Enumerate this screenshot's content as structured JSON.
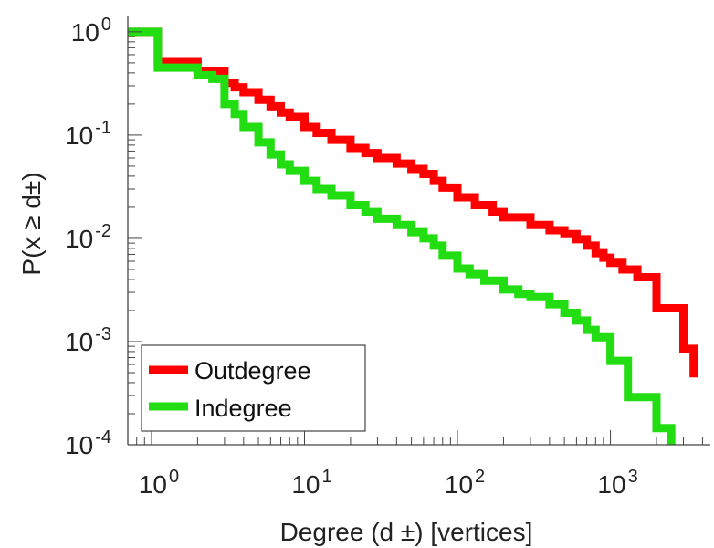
{
  "chart_data": {
    "type": "line",
    "xlabel": "Degree (d ±) [vertices]",
    "ylabel": "P(x ≥ d±)",
    "x_scale": "log",
    "y_scale": "log",
    "xlim": [
      0.7,
      4500
    ],
    "ylim": [
      0.0001,
      1.3
    ],
    "x_ticks": [
      {
        "value": 1,
        "base": "10",
        "exp": "0"
      },
      {
        "value": 10,
        "base": "10",
        "exp": "1"
      },
      {
        "value": 100,
        "base": "10",
        "exp": "2"
      },
      {
        "value": 1000,
        "base": "10",
        "exp": "3"
      }
    ],
    "y_ticks": [
      {
        "value": 1,
        "base": "10",
        "exp": "0"
      },
      {
        "value": 0.1,
        "base": "10",
        "exp": "-1"
      },
      {
        "value": 0.01,
        "base": "10",
        "exp": "-2"
      },
      {
        "value": 0.001,
        "base": "10",
        "exp": "-3"
      },
      {
        "value": 0.0001,
        "base": "10",
        "exp": "-4"
      }
    ],
    "grid": false,
    "legend": {
      "placement": "bottom-left"
    },
    "series": [
      {
        "name": "Outdegree",
        "color": "#ff0000",
        "x": [
          0.7,
          1,
          1.1,
          2,
          3,
          3.5,
          4,
          5,
          6,
          7,
          8,
          10,
          12,
          15,
          20,
          25,
          30,
          40,
          50,
          60,
          70,
          80,
          100,
          130,
          170,
          200,
          300,
          400,
          500,
          600,
          700,
          800,
          900,
          1000,
          1200,
          1500,
          2000,
          2500,
          3000,
          3500
        ],
        "y": [
          1.0,
          1.0,
          0.52,
          0.42,
          0.32,
          0.29,
          0.26,
          0.22,
          0.19,
          0.165,
          0.15,
          0.12,
          0.105,
          0.09,
          0.075,
          0.067,
          0.06,
          0.053,
          0.047,
          0.042,
          0.036,
          0.031,
          0.025,
          0.021,
          0.018,
          0.016,
          0.0135,
          0.012,
          0.011,
          0.0098,
          0.0085,
          0.0072,
          0.0065,
          0.0058,
          0.005,
          0.0042,
          0.0021,
          0.0021,
          0.00085,
          0.00045
        ]
      },
      {
        "name": "Indegree",
        "color": "#22dd11",
        "x": [
          0.7,
          1,
          1.1,
          2,
          2.5,
          3,
          3.5,
          4,
          5,
          6,
          7,
          8,
          10,
          12,
          15,
          20,
          25,
          30,
          40,
          50,
          60,
          70,
          80,
          100,
          120,
          150,
          200,
          250,
          300,
          400,
          500,
          600,
          700,
          800,
          1000,
          1300,
          2000,
          2500
        ],
        "y": [
          1.0,
          1.0,
          0.45,
          0.38,
          0.35,
          0.2,
          0.16,
          0.12,
          0.085,
          0.065,
          0.052,
          0.045,
          0.036,
          0.03,
          0.026,
          0.021,
          0.018,
          0.0155,
          0.0135,
          0.0115,
          0.01,
          0.0085,
          0.0068,
          0.0051,
          0.0045,
          0.0039,
          0.0032,
          0.0029,
          0.0027,
          0.0023,
          0.0019,
          0.0016,
          0.0013,
          0.0011,
          0.00065,
          0.00029,
          0.000145,
          0.0001
        ]
      }
    ]
  }
}
